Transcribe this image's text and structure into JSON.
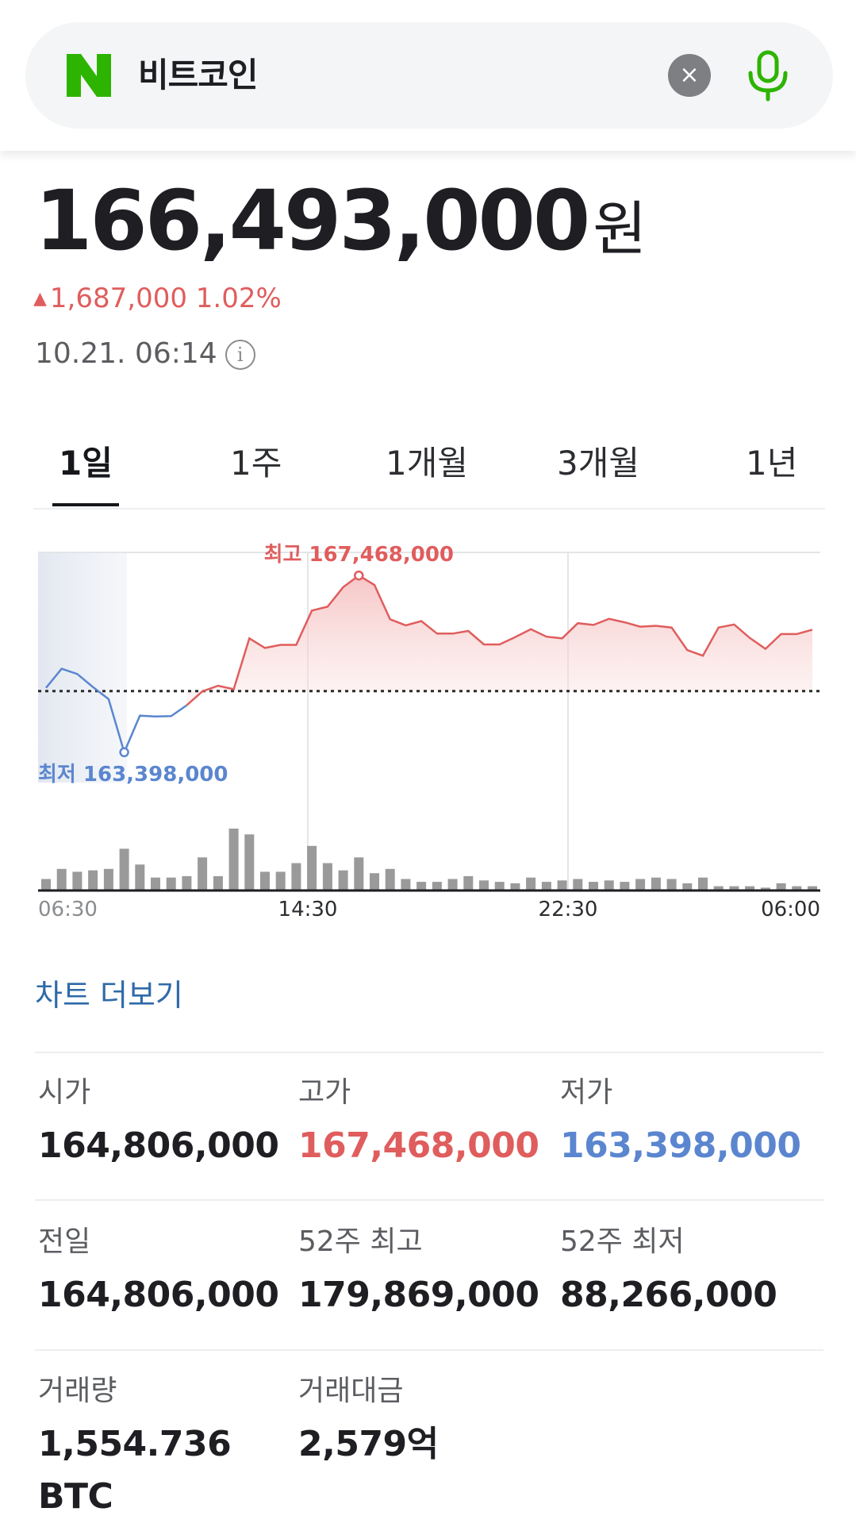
{
  "search": {
    "query": "비트코인",
    "clear_glyph": "×",
    "logo_icon": "naver-n-logo",
    "mic_icon": "microphone-icon",
    "accent_color": "#2db400"
  },
  "quote": {
    "price": "166,493,000",
    "unit": "원",
    "change_arrow": "▲",
    "change": "1,687,000 1.02%",
    "timestamp": "10.21. 06:14",
    "info_glyph": "i",
    "up_color": "#e05d5d",
    "down_color": "#5b86cf"
  },
  "tabs": [
    {
      "label": "1일",
      "active": true
    },
    {
      "label": "1주",
      "active": false
    },
    {
      "label": "1개월",
      "active": false
    },
    {
      "label": "3개월",
      "active": false
    },
    {
      "label": "1년",
      "active": false
    }
  ],
  "chart_data": {
    "type": "line",
    "x_ticks": [
      "06:30",
      "14:30",
      "22:30",
      "06:00"
    ],
    "baseline": 164806000,
    "high_label": "최고 167,468,000",
    "low_label": "최저 163,398,000",
    "high_value": 167468000,
    "low_value": 163398000,
    "ylim": [
      162700000,
      168000000
    ],
    "price_series": [
      164880000,
      165320000,
      165200000,
      164900000,
      164620000,
      163398000,
      164240000,
      164220000,
      164230000,
      164480000,
      164800000,
      164930000,
      164850000,
      166020000,
      165800000,
      165870000,
      165870000,
      166660000,
      166750000,
      167200000,
      167468000,
      167250000,
      166460000,
      166320000,
      166420000,
      166130000,
      166130000,
      166190000,
      165880000,
      165880000,
      166050000,
      166230000,
      166060000,
      166020000,
      166370000,
      166330000,
      166470000,
      166390000,
      166290000,
      166310000,
      166270000,
      165750000,
      165620000,
      166270000,
      166340000,
      166030000,
      165780000,
      166120000,
      166120000,
      166220000
    ],
    "volume_series": [
      0.8,
      1.5,
      1.3,
      1.4,
      1.5,
      2.9,
      1.8,
      0.9,
      0.9,
      1.0,
      2.3,
      1.0,
      4.3,
      3.9,
      1.3,
      1.3,
      1.9,
      3.1,
      1.9,
      1.4,
      2.3,
      1.2,
      1.5,
      0.8,
      0.6,
      0.6,
      0.8,
      1.0,
      0.7,
      0.6,
      0.5,
      0.9,
      0.6,
      0.7,
      0.8,
      0.6,
      0.7,
      0.6,
      0.8,
      0.9,
      0.8,
      0.5,
      0.9,
      0.3,
      0.3,
      0.3,
      0.2,
      0.5,
      0.3,
      0.3
    ],
    "max_index": 20,
    "min_index": 5,
    "split_index": 9
  },
  "more_chart": "차트 더보기",
  "stats": [
    {
      "label": "시가",
      "value": "164,806,000",
      "tone": "normal"
    },
    {
      "label": "고가",
      "value": "167,468,000",
      "tone": "up"
    },
    {
      "label": "저가",
      "value": "163,398,000",
      "tone": "down"
    },
    {
      "label": "전일",
      "value": "164,806,000",
      "tone": "normal"
    },
    {
      "label": "52주 최고",
      "value": "179,869,000",
      "tone": "normal"
    },
    {
      "label": "52주 최저",
      "value": "88,266,000",
      "tone": "normal"
    },
    {
      "label": "거래량",
      "value": "1,554.736",
      "value2": "BTC",
      "tone": "normal"
    },
    {
      "label": "거래대금",
      "value": "2,579억",
      "tone": "normal"
    }
  ]
}
